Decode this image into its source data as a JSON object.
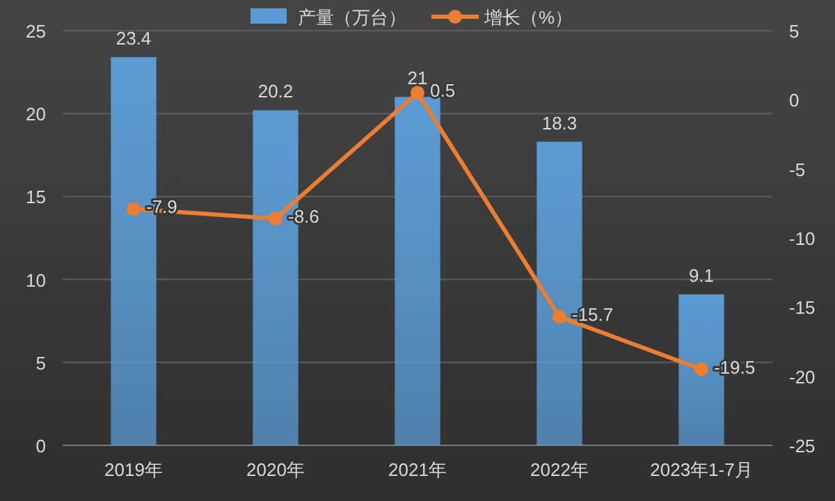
{
  "chart_data": {
    "type": "bar",
    "categories": [
      "2019年",
      "2020年",
      "2021年",
      "2022年",
      "2023年1-7月"
    ],
    "series": [
      {
        "name": "产量（万台）",
        "color": "#5b9bd5",
        "values": [
          23.4,
          20.2,
          21,
          18.3,
          9.1
        ]
      },
      {
        "name": "增长（%）",
        "type": "line",
        "axis": "y2",
        "color": "#ed7d31",
        "values": [
          -7.9,
          -8.6,
          0.5,
          -15.7,
          -19.5
        ]
      }
    ],
    "ylim": [
      0,
      25
    ],
    "yticks": [
      0,
      5,
      10,
      15,
      20,
      25
    ],
    "y2lim": [
      -25,
      5
    ],
    "y2ticks": [
      -25,
      -20,
      -15,
      -10,
      -5,
      0,
      5
    ],
    "grid": "y",
    "legend": "top",
    "data_labels": true,
    "marker": "circle",
    "line_style": "solid"
  }
}
